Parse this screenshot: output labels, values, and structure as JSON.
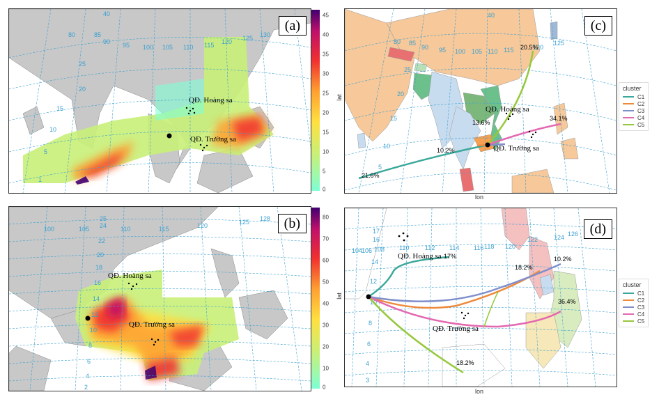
{
  "panels": {
    "a": {
      "label": "(a)",
      "archipelagos": [
        "QĐ. Hoàng sa",
        "QĐ. Trường sa"
      ],
      "lon_ticks": [
        "40",
        "80",
        "85",
        "90",
        "95",
        "100",
        "105",
        "110",
        "115",
        "120",
        "125",
        "130"
      ],
      "lat_ticks": [
        "25",
        "20",
        "15",
        "10",
        "5",
        "1"
      ],
      "colorbar_ticks": [
        "45",
        "40",
        "35",
        "30",
        "25",
        "20",
        "15",
        "10",
        "5",
        "0"
      ]
    },
    "b": {
      "label": "(b)",
      "archipelagos": [
        "QĐ. Hoàng sa",
        "QĐ. Trường sa"
      ],
      "lon_ticks": [
        "100",
        "105",
        "110",
        "115",
        "120",
        "125",
        "128"
      ],
      "lat_ticks": [
        "25",
        "24",
        "22",
        "20",
        "18",
        "16",
        "14",
        "12",
        "10",
        "8",
        "6",
        "4",
        "2"
      ],
      "colorbar_ticks": [
        "80",
        "70",
        "60",
        "50",
        "40",
        "30",
        "20",
        "10",
        "0"
      ]
    },
    "c": {
      "label": "(c)",
      "archipelagos": [
        "QĐ. Hoàng sa",
        "QĐ. Trường sa"
      ],
      "lon_ticks": [
        "40",
        "80",
        "85",
        "90",
        "95",
        "100",
        "105",
        "110",
        "115",
        "120",
        "125"
      ],
      "lat_ticks": [
        "25",
        "20",
        "15",
        "10",
        "5"
      ],
      "xlabel": "lon",
      "ylabel": "lat",
      "percentages": [
        "20.5%",
        "13.6%",
        "34.1%",
        "10.2%",
        "21.6%"
      ],
      "legend_title": "cluster",
      "clusters": [
        "C1",
        "C2",
        "C3",
        "C4",
        "C5"
      ]
    },
    "d": {
      "label": "(d)",
      "archipelagos": [
        "QĐ. Hoàng sa",
        "QĐ. Trường sa"
      ],
      "lon_ticks": [
        "104",
        "106",
        "108",
        "110",
        "112",
        "114",
        "116",
        "118",
        "120",
        "122",
        "124",
        "126"
      ],
      "lat_ticks": [
        "17",
        "16",
        "14",
        "12",
        "10",
        "8",
        "6",
        "4",
        "3"
      ],
      "xlabel": "lon",
      "ylabel": "lat",
      "percentages": [
        "17%",
        "18.2%",
        "10.2%",
        "36.4%",
        "18.2%"
      ],
      "legend_title": "cluster",
      "clusters": [
        "C1",
        "C2",
        "C3",
        "C4",
        "C5"
      ]
    }
  },
  "colors": {
    "c1": "#3aa89a",
    "c2": "#ee8a3c",
    "c3": "#7f8fcc",
    "c4": "#e468b0",
    "c5": "#96c83c",
    "grid": "#3aa0d0",
    "land": "#c8c8c8"
  }
}
